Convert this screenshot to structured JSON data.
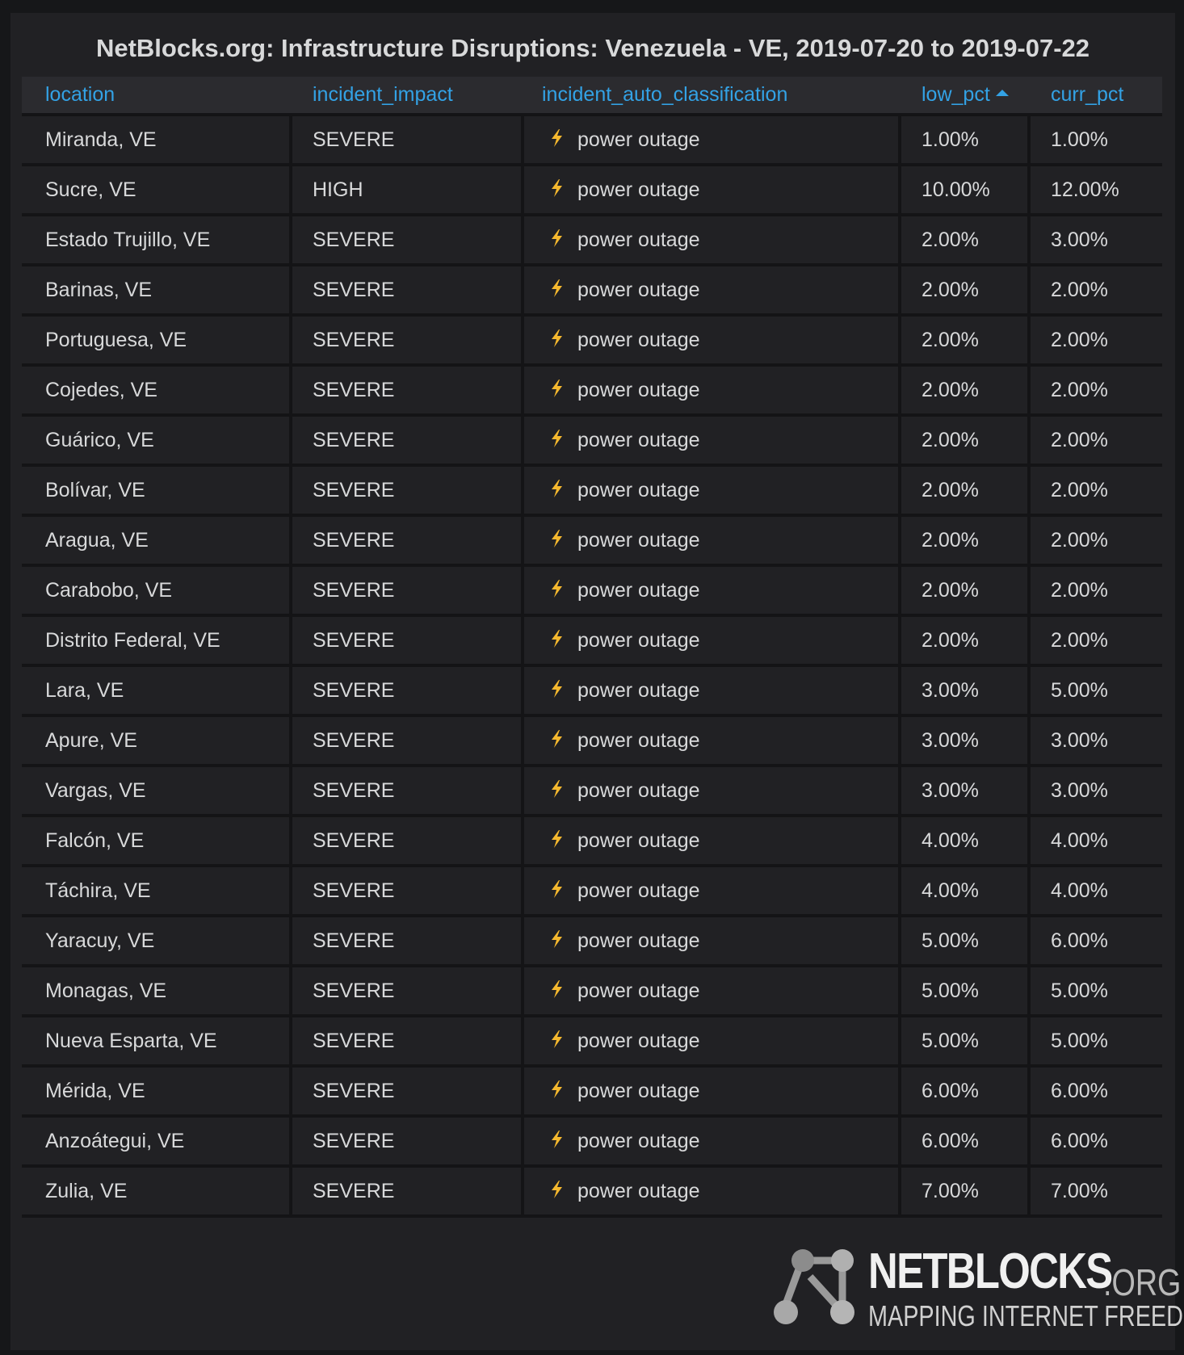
{
  "panel": {
    "title": "NetBlocks.org: Infrastructure Disruptions: Venezuela - VE, 2019-07-20 to 2019-07-22"
  },
  "table": {
    "columns": [
      "location",
      "incident_impact",
      "incident_auto_classification",
      "low_pct",
      "curr_pct"
    ],
    "sort_column": "low_pct",
    "sort_direction": "ascending",
    "rows": [
      {
        "location": "Miranda, VE",
        "impact": "SEVERE",
        "classification": "power outage",
        "low_pct": "1.00%",
        "curr_pct": "1.00%"
      },
      {
        "location": "Sucre, VE",
        "impact": "HIGH",
        "classification": "power outage",
        "low_pct": "10.00%",
        "curr_pct": "12.00%"
      },
      {
        "location": "Estado Trujillo, VE",
        "impact": "SEVERE",
        "classification": "power outage",
        "low_pct": "2.00%",
        "curr_pct": "3.00%"
      },
      {
        "location": "Barinas, VE",
        "impact": "SEVERE",
        "classification": "power outage",
        "low_pct": "2.00%",
        "curr_pct": "2.00%"
      },
      {
        "location": "Portuguesa, VE",
        "impact": "SEVERE",
        "classification": "power outage",
        "low_pct": "2.00%",
        "curr_pct": "2.00%"
      },
      {
        "location": "Cojedes, VE",
        "impact": "SEVERE",
        "classification": "power outage",
        "low_pct": "2.00%",
        "curr_pct": "2.00%"
      },
      {
        "location": "Guárico, VE",
        "impact": "SEVERE",
        "classification": "power outage",
        "low_pct": "2.00%",
        "curr_pct": "2.00%"
      },
      {
        "location": "Bolívar, VE",
        "impact": "SEVERE",
        "classification": "power outage",
        "low_pct": "2.00%",
        "curr_pct": "2.00%"
      },
      {
        "location": "Aragua, VE",
        "impact": "SEVERE",
        "classification": "power outage",
        "low_pct": "2.00%",
        "curr_pct": "2.00%"
      },
      {
        "location": "Carabobo, VE",
        "impact": "SEVERE",
        "classification": "power outage",
        "low_pct": "2.00%",
        "curr_pct": "2.00%"
      },
      {
        "location": "Distrito Federal, VE",
        "impact": "SEVERE",
        "classification": "power outage",
        "low_pct": "2.00%",
        "curr_pct": "2.00%"
      },
      {
        "location": "Lara, VE",
        "impact": "SEVERE",
        "classification": "power outage",
        "low_pct": "3.00%",
        "curr_pct": "5.00%"
      },
      {
        "location": "Apure, VE",
        "impact": "SEVERE",
        "classification": "power outage",
        "low_pct": "3.00%",
        "curr_pct": "3.00%"
      },
      {
        "location": "Vargas, VE",
        "impact": "SEVERE",
        "classification": "power outage",
        "low_pct": "3.00%",
        "curr_pct": "3.00%"
      },
      {
        "location": "Falcón, VE",
        "impact": "SEVERE",
        "classification": "power outage",
        "low_pct": "4.00%",
        "curr_pct": "4.00%"
      },
      {
        "location": "Táchira, VE",
        "impact": "SEVERE",
        "classification": "power outage",
        "low_pct": "4.00%",
        "curr_pct": "4.00%"
      },
      {
        "location": "Yaracuy, VE",
        "impact": "SEVERE",
        "classification": "power outage",
        "low_pct": "5.00%",
        "curr_pct": "6.00%"
      },
      {
        "location": "Monagas, VE",
        "impact": "SEVERE",
        "classification": "power outage",
        "low_pct": "5.00%",
        "curr_pct": "5.00%"
      },
      {
        "location": "Nueva Esparta, VE",
        "impact": "SEVERE",
        "classification": "power outage",
        "low_pct": "5.00%",
        "curr_pct": "5.00%"
      },
      {
        "location": "Mérida, VE",
        "impact": "SEVERE",
        "classification": "power outage",
        "low_pct": "6.00%",
        "curr_pct": "6.00%"
      },
      {
        "location": "Anzoátegui, VE",
        "impact": "SEVERE",
        "classification": "power outage",
        "low_pct": "6.00%",
        "curr_pct": "6.00%"
      },
      {
        "location": "Zulia, VE",
        "impact": "SEVERE",
        "classification": "power outage",
        "low_pct": "7.00%",
        "curr_pct": "7.00%"
      }
    ]
  },
  "brand": {
    "name": "NETBLOCKS",
    "suffix": ".ORG",
    "tagline": "MAPPING INTERNET FREEDOM"
  },
  "icons": {
    "classification_icon": "lightning-bolt-icon",
    "sort_icon": "caret-up-icon",
    "logo": "netblocks-node-graph-logo"
  },
  "colors": {
    "background": "#161719",
    "panel": "#212124",
    "header_text": "#33a2e5",
    "body_text": "#d8d9da",
    "bolt": "#f5b82e"
  }
}
